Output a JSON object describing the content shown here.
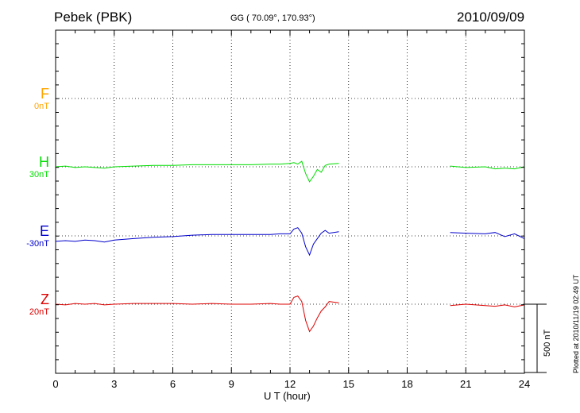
{
  "header": {
    "station": "Pebek (PBK)",
    "coords": "GG ( 70.09°, 170.93°)",
    "date": "2010/09/09"
  },
  "footer": {
    "plotted": "Plotted at 2010/11/19 02:49 UT"
  },
  "scale": {
    "label": "500 nT",
    "nT": 500
  },
  "components": [
    {
      "name": "F",
      "baseline": "0nT",
      "color": "#ffa500"
    },
    {
      "name": "H",
      "baseline": "30nT",
      "color": "#00dd00"
    },
    {
      "name": "E",
      "baseline": "-30nT",
      "color": "#0000cc"
    },
    {
      "name": "Z",
      "baseline": "20nT",
      "color": "#dd0000"
    }
  ],
  "chart_data": {
    "type": "line",
    "title": "Pebek (PBK)",
    "xlabel": "U T (hour)",
    "xlim": [
      0,
      24
    ],
    "xticks": [
      0,
      3,
      6,
      9,
      12,
      15,
      18,
      21,
      24
    ],
    "grid": true,
    "series": [
      {
        "name": "F",
        "x": [],
        "y": []
      },
      {
        "name": "H",
        "x": [
          0,
          0.5,
          1,
          1.5,
          2,
          2.5,
          3,
          4,
          5,
          6,
          7,
          8,
          9,
          10,
          11,
          11.5,
          12,
          12.2,
          12.4,
          12.6,
          12.8,
          13,
          13.2,
          13.4,
          13.6,
          13.8,
          14,
          14.5,
          null,
          20.2,
          21,
          22,
          22.5,
          23,
          23.5,
          24
        ],
        "y": [
          0,
          5,
          -5,
          0,
          -5,
          -10,
          0,
          5,
          10,
          10,
          15,
          15,
          15,
          15,
          20,
          20,
          25,
          30,
          20,
          40,
          -50,
          -110,
          -70,
          -20,
          -40,
          10,
          20,
          25,
          null,
          5,
          -5,
          0,
          -15,
          -10,
          -15,
          0
        ]
      },
      {
        "name": "E",
        "x": [
          0,
          0.5,
          1,
          1.5,
          2,
          2.5,
          3,
          4,
          5,
          6,
          7,
          8,
          9,
          10,
          11,
          11.5,
          12,
          12.2,
          12.4,
          12.6,
          12.8,
          13,
          13.2,
          13.4,
          13.6,
          13.8,
          14,
          14.5,
          null,
          20.2,
          21,
          22,
          22.5,
          23,
          23.5,
          24
        ],
        "y": [
          -40,
          -35,
          -40,
          -30,
          -35,
          -45,
          -30,
          -20,
          -10,
          -5,
          5,
          10,
          10,
          10,
          10,
          15,
          15,
          50,
          60,
          20,
          -80,
          -140,
          -60,
          -20,
          20,
          40,
          20,
          30,
          null,
          25,
          20,
          15,
          25,
          -5,
          15,
          -20
        ]
      },
      {
        "name": "Z",
        "x": [
          0,
          0.5,
          1,
          1.5,
          2,
          2.5,
          3,
          4,
          5,
          6,
          7,
          8,
          9,
          10,
          11,
          11.5,
          12,
          12.2,
          12.4,
          12.6,
          12.8,
          13,
          13.2,
          13.4,
          13.6,
          13.8,
          14,
          14.5,
          null,
          20.2,
          21,
          22,
          22.5,
          23,
          23.5,
          24
        ],
        "y": [
          0,
          -5,
          5,
          0,
          5,
          -5,
          0,
          5,
          5,
          5,
          0,
          5,
          0,
          0,
          5,
          0,
          0,
          50,
          60,
          20,
          -120,
          -200,
          -160,
          -100,
          -50,
          -20,
          20,
          10,
          null,
          -10,
          0,
          -10,
          -15,
          -5,
          -20,
          -5
        ]
      }
    ]
  }
}
